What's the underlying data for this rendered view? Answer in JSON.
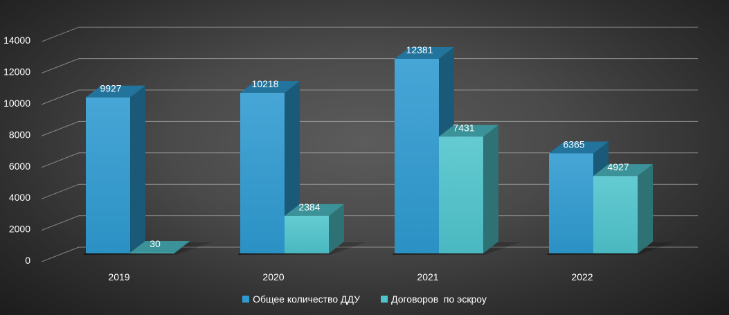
{
  "chart_data": {
    "type": "bar",
    "categories": [
      "2019",
      "2020",
      "2021",
      "2022"
    ],
    "series": [
      {
        "name": "Общее количество ДДУ",
        "values": [
          9927,
          10218,
          12381,
          6365
        ],
        "labels": [
          "9927",
          "10218",
          "12381",
          "6365"
        ],
        "color": "#2e9ad0"
      },
      {
        "name": "Договоров  по эскроу",
        "values": [
          30,
          2384,
          7431,
          4927
        ],
        "labels": [
          "30",
          "2384",
          "7431",
          "4927"
        ],
        "color": "#4fc4cc"
      }
    ],
    "y_ticks": [
      "0",
      "2000",
      "4000",
      "6000",
      "8000",
      "10000",
      "12000",
      "14000"
    ],
    "ylim": [
      0,
      14000
    ],
    "grid": true,
    "three_d": true,
    "legend_position": "bottom",
    "background_color": "#4a4a4a"
  }
}
